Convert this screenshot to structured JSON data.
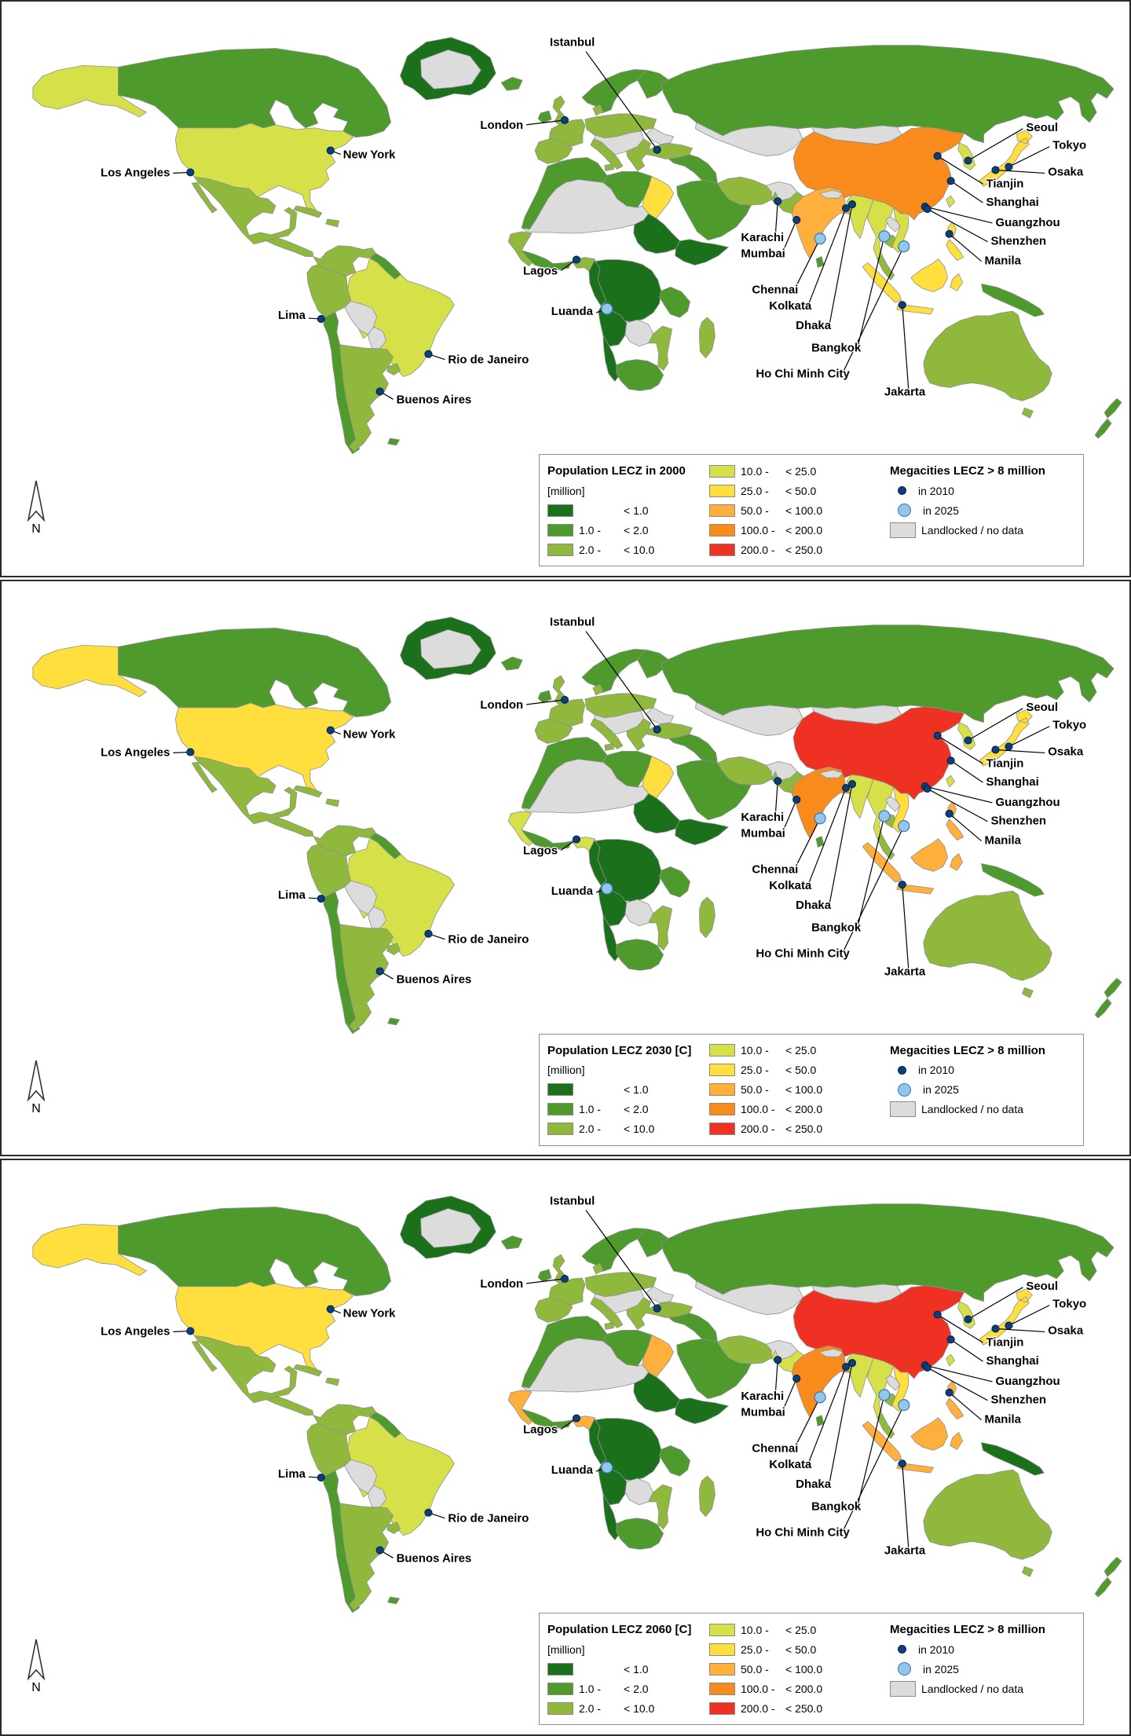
{
  "colors": {
    "c1": "#1b701b",
    "c2": "#4f9a2c",
    "c3": "#90b83d",
    "c4": "#d6e14a",
    "c5": "#ffdf3d",
    "c6": "#ffb03c",
    "c7": "#f98b1d",
    "c8": "#ee3123",
    "nodata": "#dcdcdc",
    "ocean": "#ffffff",
    "border": "#8f8f8f",
    "dot2010_fill": "#0d3f7d",
    "dot2010_stroke": "#05244d",
    "dot2025_fill": "#92c6ec",
    "dot2025_stroke": "#3b77b5"
  },
  "legend": {
    "subtitle": "[million]",
    "megacities_title": "Megacities LECZ > 8 million",
    "landlocked_label": "Landlocked / no data",
    "north": "N",
    "rows1": [
      {
        "c": "c1",
        "from": "",
        "to": "< 1.0"
      },
      {
        "c": "c2",
        "from": "1.0 -",
        "to": "< 2.0"
      },
      {
        "c": "c3",
        "from": "2.0 -",
        "to": "< 10.0"
      }
    ],
    "rows2": [
      {
        "c": "c4",
        "from": "10.0 -",
        "to": "< 25.0"
      },
      {
        "c": "c5",
        "from": "25.0 -",
        "to": "< 50.0"
      },
      {
        "c": "c6",
        "from": "50.0 -",
        "to": "< 100.0"
      },
      {
        "c": "c7",
        "from": "100.0 -",
        "to": "< 200.0"
      },
      {
        "c": "c8",
        "from": "200.0 -",
        "to": "< 250.0"
      }
    ],
    "mega": [
      {
        "type": "2010",
        "label": "in 2010"
      },
      {
        "type": "2025",
        "label": "in 2025"
      }
    ]
  },
  "panels": [
    {
      "title": "Population LECZ in 2000",
      "classes": {
        "alaska": "c4",
        "usa": "c4",
        "egypt": "c5",
        "senegal": "c3",
        "nigeria": "c3",
        "india": "c6",
        "bangladesh": "c5",
        "china": "c7",
        "vietnam": "c4",
        "indonesia": "c5",
        "philippines": "c5",
        "png": "c2",
        "pakistan": "c3"
      }
    },
    {
      "title": "Population LECZ 2030 [C]",
      "classes": {
        "alaska": "c5",
        "usa": "c5",
        "egypt": "c5",
        "senegal": "c4",
        "nigeria": "c4",
        "india": "c7",
        "bangladesh": "c6",
        "china": "c8",
        "vietnam": "c5",
        "indonesia": "c6",
        "philippines": "c6",
        "png": "c2",
        "pakistan": "c3"
      }
    },
    {
      "title": "Population LECZ 2060 [C]",
      "classes": {
        "alaska": "c5",
        "usa": "c5",
        "egypt": "c6",
        "senegal": "c6",
        "nigeria": "c6",
        "india": "c7",
        "bangladesh": "c6",
        "china": "c8",
        "vietnam": "c5",
        "indonesia": "c6",
        "philippines": "c6",
        "png": "c1",
        "pakistan": "c4"
      }
    }
  ],
  "base_classes": {
    "canada": "c2",
    "greenland": "c1",
    "greenlandice": "nodata",
    "mexico": "c3",
    "baja": "c3",
    "centralamerica": "c3",
    "cuba": "c3",
    "hispaniola": "c3",
    "colven": "c3",
    "guyanas": "c2",
    "brazil": "c4",
    "peru": "c3",
    "bolivia": "nodata",
    "paraguay": "nodata",
    "chile": "c2",
    "argentina": "c3",
    "uruguay": "c3",
    "falklands": "c2",
    "iceland": "c2",
    "ireland": "c2",
    "uk": "c3",
    "norwaysweden": "c2",
    "finland": "c2",
    "denmark": "c3",
    "france": "c3",
    "iberia": "c3",
    "germanypoland": "c3",
    "centraleurope": "nodata",
    "italy": "c3",
    "balkans": "c3",
    "ukraine": "nodata",
    "russia": "c2",
    "kazakh": "nodata",
    "mongolia": "nodata",
    "turkey": "c3",
    "levantiraq": "c2",
    "arabia": "c2",
    "iran": "c3",
    "afghanistan": "nodata",
    "nepal": "nodata",
    "srilanka": "c2",
    "korea": "c4",
    "japan": "c5",
    "taiwan": "c4",
    "myanmar": "c4",
    "thailand": "c4",
    "malaysia": "c3",
    "laos": "nodata",
    "cambodia": "c3",
    "australia": "c3",
    "tasmania": "c3",
    "newzealand": "c2",
    "maghreb": "c2",
    "libya": "c2",
    "sahel": "nodata",
    "sudan": "c1",
    "horn": "c1",
    "wafrica": "c2",
    "camgabon": "c1",
    "centralafrica": "c1",
    "eastafrica": "c2",
    "angola": "c1",
    "zambia": "nodata",
    "mozambique": "c3",
    "namibia": "c1",
    "southafrica": "c2",
    "madagascar": "c3"
  },
  "cities": [
    {
      "name": "Istanbul",
      "dot": [
        837,
        190
      ],
      "label": [
        700,
        57
      ],
      "anchor": "start",
      "line": [
        746,
        64
      ],
      "type": "2010"
    },
    {
      "name": "London",
      "dot": [
        719,
        152
      ],
      "label": [
        666,
        163
      ],
      "anchor": "end",
      "line": [
        670,
        158
      ],
      "type": "2010"
    },
    {
      "name": "New York",
      "dot": [
        420,
        191
      ],
      "label": [
        436,
        201
      ],
      "anchor": "start",
      "line": [
        433,
        196
      ],
      "type": "2010"
    },
    {
      "name": "Los Angeles",
      "dot": [
        241,
        219
      ],
      "label": [
        215,
        224
      ],
      "anchor": "end",
      "line": [
        219,
        220
      ],
      "type": "2010"
    },
    {
      "name": "Lima",
      "dot": [
        408,
        407
      ],
      "label": [
        388,
        407
      ],
      "anchor": "end",
      "line": [
        392,
        406
      ],
      "type": "2010"
    },
    {
      "name": "Rio de Janeiro",
      "dot": [
        545,
        452
      ],
      "label": [
        570,
        464
      ],
      "anchor": "start",
      "line": [
        566,
        459
      ],
      "type": "2010"
    },
    {
      "name": "Buenos Aires",
      "dot": [
        483,
        500
      ],
      "label": [
        504,
        515
      ],
      "anchor": "start",
      "line": [
        500,
        510
      ],
      "type": "2010"
    },
    {
      "name": "Lagos",
      "dot": [
        734,
        331
      ],
      "label": [
        710,
        350
      ],
      "anchor": "end",
      "line": [
        714,
        345
      ],
      "type": "2010"
    },
    {
      "name": "Luanda",
      "dot": [
        773,
        394
      ],
      "label": [
        755,
        402
      ],
      "anchor": "end",
      "line": [
        759,
        399
      ],
      "type": "2025"
    },
    {
      "name": "Karachi",
      "dot": [
        991,
        256
      ],
      "label": [
        944,
        307
      ],
      "anchor": "start",
      "line": [
        988,
        300
      ],
      "type": "2010"
    },
    {
      "name": "Mumbai",
      "dot": [
        1015,
        280
      ],
      "label": [
        944,
        328
      ],
      "anchor": "start",
      "line": [
        997,
        322
      ],
      "type": "2010"
    },
    {
      "name": "Chennai",
      "dot": [
        1045,
        304
      ],
      "label": [
        958,
        374
      ],
      "anchor": "start",
      "line": [
        1013,
        368
      ],
      "type": "2025"
    },
    {
      "name": "Kolkata",
      "dot": [
        1078,
        265
      ],
      "label": [
        980,
        395
      ],
      "anchor": "start",
      "line": [
        1030,
        389
      ],
      "type": "2010"
    },
    {
      "name": "Dhaka",
      "dot": [
        1086,
        260
      ],
      "label": [
        1014,
        420
      ],
      "anchor": "start",
      "line": [
        1057,
        414
      ],
      "type": "2010"
    },
    {
      "name": "Bangkok",
      "dot": [
        1127,
        301
      ],
      "label": [
        1034,
        449
      ],
      "anchor": "start",
      "line": [
        1093,
        443
      ],
      "type": "2025"
    },
    {
      "name": "Ho Chi Minh City",
      "dot": [
        1152,
        314
      ],
      "label": [
        963,
        482
      ],
      "anchor": "start",
      "line": [
        1074,
        476
      ],
      "type": "2025"
    },
    {
      "name": "Jakarta",
      "dot": [
        1150,
        389
      ],
      "label": [
        1127,
        505
      ],
      "anchor": "start",
      "line": [
        1158,
        498
      ],
      "type": "2010"
    },
    {
      "name": "Seoul",
      "dot": [
        1234,
        204
      ],
      "label": [
        1308,
        166
      ],
      "anchor": "start",
      "line": [
        1304,
        163
      ],
      "type": "2010"
    },
    {
      "name": "Tokyo",
      "dot": [
        1286,
        212
      ],
      "label": [
        1342,
        189
      ],
      "anchor": "start",
      "line": [
        1338,
        186
      ],
      "type": "2010"
    },
    {
      "name": "Osaka",
      "dot": [
        1269,
        216
      ],
      "label": [
        1336,
        223
      ],
      "anchor": "start",
      "line": [
        1332,
        220
      ],
      "type": "2010"
    },
    {
      "name": "Tianjin",
      "dot": [
        1195,
        198
      ],
      "label": [
        1257,
        238
      ],
      "anchor": "start",
      "line": [
        1253,
        234
      ],
      "type": "2010"
    },
    {
      "name": "Shanghai",
      "dot": [
        1212,
        230
      ],
      "label": [
        1257,
        262
      ],
      "anchor": "start",
      "line": [
        1253,
        258
      ],
      "type": "2010"
    },
    {
      "name": "Guangzhou",
      "dot": [
        1179,
        263
      ],
      "label": [
        1269,
        288
      ],
      "anchor": "start",
      "line": [
        1265,
        284
      ],
      "type": "2010"
    },
    {
      "name": "Shenzhen",
      "dot": [
        1182,
        266
      ],
      "label": [
        1263,
        312
      ],
      "anchor": "start",
      "line": [
        1259,
        308
      ],
      "type": "2010"
    },
    {
      "name": "Manila",
      "dot": [
        1210,
        298
      ],
      "label": [
        1255,
        337
      ],
      "anchor": "start",
      "line": [
        1251,
        333
      ],
      "type": "2010"
    }
  ]
}
